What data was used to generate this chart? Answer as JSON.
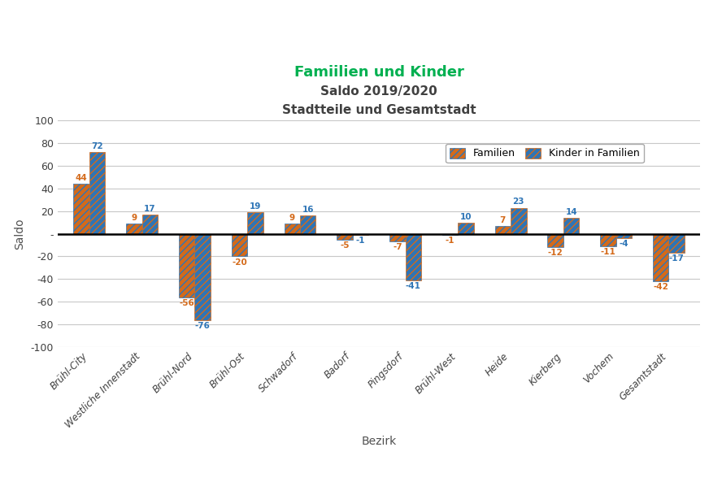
{
  "title_line1": "Famiilien und Kinder",
  "title_line2": "Saldo 2019/2020",
  "title_line3": "Stadtteile und Gesamtstadt",
  "xlabel": "Bezirk",
  "ylabel": "Saldo",
  "ylim": [
    -100,
    100
  ],
  "yticks": [
    -100,
    -80,
    -60,
    -40,
    -20,
    0,
    20,
    40,
    60,
    80,
    100
  ],
  "categories": [
    "Brühl-City",
    "Westliche Innenstadt",
    "Brühl-Nord",
    "Brühl-Ost",
    "Schwadorf",
    "Badorf",
    "Pingsdorf",
    "Brühl-West",
    "Heide",
    "Kierberg",
    "Vochem",
    "Gesamtstadt"
  ],
  "familien": [
    44,
    9,
    -56,
    -20,
    9,
    -5,
    -7,
    -1,
    7,
    -12,
    -11,
    -42
  ],
  "kinder_in_familien": [
    72,
    17,
    -76,
    19,
    16,
    -1,
    -41,
    10,
    23,
    14,
    -4,
    -17
  ],
  "color_familien": "#d46a1a",
  "color_kinder": "#2e75b6",
  "hatch": "////",
  "legend_familien": "Familien",
  "legend_kinder": "Kinder in Familien",
  "title_color1": "#00b050",
  "title_color23": "#404040",
  "bar_width": 0.3,
  "background_color": "#ffffff",
  "grid_color": "#c8c8c8"
}
